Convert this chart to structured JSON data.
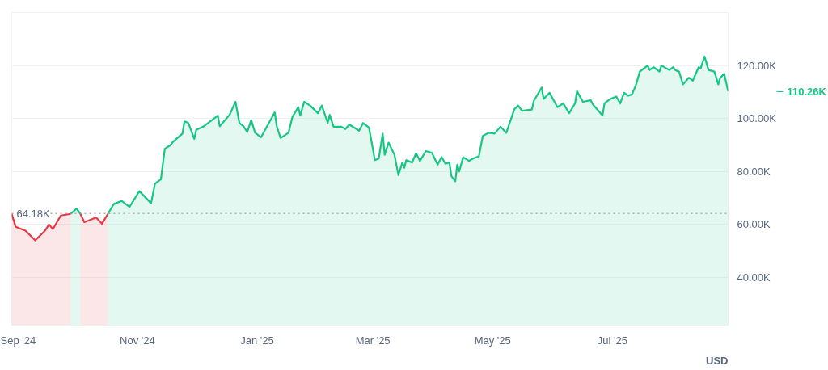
{
  "chart_data": {
    "type": "area",
    "xlim": [
      "2024-08-29",
      "2025-08-29"
    ],
    "xticks": [
      {
        "value": "2024-09-01",
        "label": "Sep '24"
      },
      {
        "value": "2024-11-01",
        "label": "Nov '24"
      },
      {
        "value": "2025-01-01",
        "label": "Jan '25"
      },
      {
        "value": "2025-03-01",
        "label": "Mar '25"
      },
      {
        "value": "2025-05-01",
        "label": "May '25"
      },
      {
        "value": "2025-07-01",
        "label": "Jul '25"
      }
    ],
    "ylim": [
      22000,
      140000
    ],
    "yticks": [
      {
        "value": 40000,
        "label": "40.00K"
      },
      {
        "value": 60000,
        "label": "60.00K"
      },
      {
        "value": 80000,
        "label": "80.00K"
      },
      {
        "value": 100000,
        "label": "100.00K"
      },
      {
        "value": 120000,
        "label": "120.00K"
      }
    ],
    "grid": "y",
    "series": [
      {
        "color": "#ea3943",
        "x": [
          "2024-08-29",
          "2024-08-31",
          "2024-09-05",
          "2024-09-10",
          "2024-09-15",
          "2024-09-17",
          "2024-09-19",
          "2024-09-23",
          "2024-09-28"
        ],
        "values": [
          64000,
          59100,
          57700,
          54000,
          57700,
          60000,
          58300,
          63400,
          64000
        ]
      },
      {
        "color": "#16c784",
        "x": [
          "2024-09-28",
          "2024-10-01",
          "2024-10-03"
        ],
        "values": [
          64000,
          66000,
          64000
        ]
      },
      {
        "color": "#ea3943",
        "x": [
          "2024-10-03",
          "2024-10-05",
          "2024-10-11",
          "2024-10-14",
          "2024-10-17"
        ],
        "values": [
          64000,
          60900,
          62600,
          60300,
          64000
        ]
      },
      {
        "color": "#16c784",
        "x": [
          "2024-10-17",
          "2024-10-20",
          "2024-10-24",
          "2024-10-28",
          "2024-11-02",
          "2024-11-08",
          "2024-11-10",
          "2024-11-13",
          "2024-11-15",
          "2024-11-18",
          "2024-11-19",
          "2024-11-24",
          "2024-11-25",
          "2024-11-27",
          "2024-11-30",
          "2024-12-01",
          "2024-12-05",
          "2024-12-07",
          "2024-12-12",
          "2024-12-13",
          "2024-12-18",
          "2024-12-21",
          "2024-12-23",
          "2024-12-25",
          "2024-12-27",
          "2024-12-29",
          "2024-12-31",
          "2025-01-03",
          "2025-01-07",
          "2025-01-10",
          "2025-01-11",
          "2025-01-13",
          "2025-01-17",
          "2025-01-19",
          "2025-01-22",
          "2025-01-23",
          "2025-01-25",
          "2025-01-28",
          "2025-02-01",
          "2025-02-03",
          "2025-02-06",
          "2025-02-07",
          "2025-02-09",
          "2025-02-13",
          "2025-02-15",
          "2025-02-17",
          "2025-02-22",
          "2025-02-24",
          "2025-02-27",
          "2025-02-28",
          "2025-03-02",
          "2025-03-04",
          "2025-03-06",
          "2025-03-07",
          "2025-03-09",
          "2025-03-12",
          "2025-03-14",
          "2025-03-16",
          "2025-03-17",
          "2025-03-18",
          "2025-03-21",
          "2025-03-23",
          "2025-03-25",
          "2025-03-28",
          "2025-03-31",
          "2025-04-03",
          "2025-04-05",
          "2025-04-07",
          "2025-04-09",
          "2025-04-10",
          "2025-04-12",
          "2025-04-13",
          "2025-04-14",
          "2025-04-16",
          "2025-04-19",
          "2025-04-21",
          "2025-04-24",
          "2025-04-26",
          "2025-04-29",
          "2025-05-02",
          "2025-05-05",
          "2025-05-08",
          "2025-05-12",
          "2025-05-14",
          "2025-05-16",
          "2025-05-21",
          "2025-05-22",
          "2025-05-26",
          "2025-05-27",
          "2025-05-30",
          "2025-06-03",
          "2025-06-06",
          "2025-06-09",
          "2025-06-12",
          "2025-06-13",
          "2025-06-16",
          "2025-06-20",
          "2025-06-21",
          "2025-06-26",
          "2025-06-27",
          "2025-06-30",
          "2025-07-03",
          "2025-07-05",
          "2025-07-07",
          "2025-07-09",
          "2025-07-11",
          "2025-07-13",
          "2025-07-15",
          "2025-07-19",
          "2025-07-20",
          "2025-07-22",
          "2025-07-25",
          "2025-07-26",
          "2025-07-30",
          "2025-08-01",
          "2025-08-02",
          "2025-08-04",
          "2025-08-06",
          "2025-08-09",
          "2025-08-11",
          "2025-08-14",
          "2025-08-15",
          "2025-08-17",
          "2025-08-19",
          "2025-08-22",
          "2025-08-24",
          "2025-08-25",
          "2025-08-27",
          "2025-08-29"
        ],
        "values": [
          64000,
          67700,
          68900,
          66600,
          72600,
          68000,
          75400,
          77100,
          88600,
          90000,
          91100,
          94300,
          98900,
          98300,
          92300,
          95700,
          97100,
          98300,
          101100,
          97100,
          101400,
          106300,
          98300,
          97100,
          94900,
          99400,
          94600,
          92900,
          98300,
          102300,
          97100,
          92600,
          94600,
          100600,
          104300,
          101100,
          106300,
          104900,
          102000,
          104900,
          98300,
          101400,
          96900,
          96900,
          96000,
          97700,
          95400,
          98300,
          96600,
          92600,
          84300,
          84900,
          94300,
          86300,
          90900,
          86300,
          78600,
          83400,
          81400,
          84300,
          83400,
          86900,
          84000,
          87700,
          87100,
          82600,
          85400,
          82900,
          83400,
          78300,
          76300,
          82600,
          80000,
          85400,
          84000,
          84900,
          85700,
          93400,
          94600,
          94300,
          96900,
          94600,
          103400,
          104900,
          102900,
          103400,
          106600,
          111700,
          107400,
          109700,
          104300,
          105700,
          102000,
          105700,
          110300,
          106300,
          106900,
          105400,
          101100,
          105700,
          107400,
          108300,
          105700,
          109700,
          108600,
          109100,
          112600,
          117700,
          120000,
          118300,
          119400,
          117700,
          120000,
          118300,
          119400,
          118300,
          117700,
          112900,
          115400,
          114300,
          119400,
          118900,
          123400,
          118300,
          117700,
          112900,
          115400,
          116900,
          110260
        ]
      }
    ],
    "ref_lines": [
      {
        "axis": "y",
        "value": 64180,
        "label": "64.18K",
        "color": "#888888",
        "line_style": "dotted"
      }
    ],
    "annotations": [
      "110.26K",
      "USD"
    ]
  }
}
